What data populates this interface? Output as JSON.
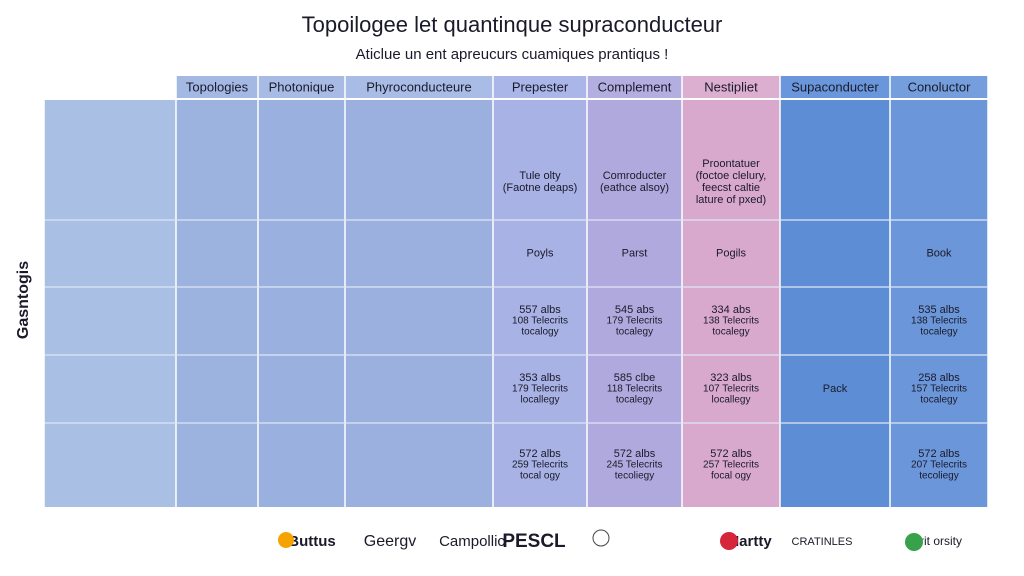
{
  "header": {
    "title": "Topoilogee let quantinque supraconducteur",
    "subtitle": "Aticlue un ent apreucurs cuamiques prantiqus !"
  },
  "table": {
    "row_label": "Gasntogis",
    "columns": [
      "Topologies",
      "Photonique",
      "Phyroconducteure",
      "Prepester",
      "Complement",
      "Nestipliet",
      "Supaconducter",
      "Conoluctor"
    ],
    "rows": [
      [
        null,
        null,
        null,
        [
          "Tule olty",
          "(Faotne deaps)"
        ],
        [
          "Comroducter",
          "(eathce alsoy)"
        ],
        [
          "Proontatuer",
          "(foctoe clelury,",
          "feecst caltie",
          "lature of pxed)"
        ],
        null,
        null
      ],
      [
        null,
        null,
        null,
        [
          "Poyls"
        ],
        [
          "Parst"
        ],
        [
          "Pogils"
        ],
        null,
        [
          "Book"
        ]
      ],
      [
        null,
        null,
        null,
        [
          "557 albs",
          "108 Telecrits",
          "tocalogy"
        ],
        [
          "545 abs",
          "179 Telecrits",
          "tocalegy"
        ],
        [
          "334 abs",
          "138 Telecrits",
          "tocalegy"
        ],
        null,
        [
          "535 albs",
          "138 Telecrits",
          "tocalegy"
        ]
      ],
      [
        null,
        null,
        null,
        [
          "353 albs",
          "179 Telecrits",
          "locallegy"
        ],
        [
          "585 clbe",
          "118 Telecrits",
          "tocalegy"
        ],
        [
          "323 albs",
          "107 Telecrits",
          "locallegy"
        ],
        [
          "Pack"
        ],
        [
          "258 albs",
          "157 Telecrits",
          "tocalegy"
        ]
      ],
      [
        null,
        null,
        null,
        [
          "572 albs",
          "259 Telecrits",
          "tocal ogy"
        ],
        [
          "572 albs",
          "245 Telecrits",
          "tecoliegy"
        ],
        [
          "572 albs",
          "257 Telecrits",
          "focal ogy"
        ],
        null,
        [
          "572 albs",
          "207 Telecrits",
          "tecoliegy"
        ]
      ]
    ]
  },
  "footer": {
    "logos": [
      "Buttus",
      "Geergv",
      "Campollic",
      "PESCL",
      "Hartty",
      "CRATINLES",
      "Farit orsity"
    ]
  }
}
